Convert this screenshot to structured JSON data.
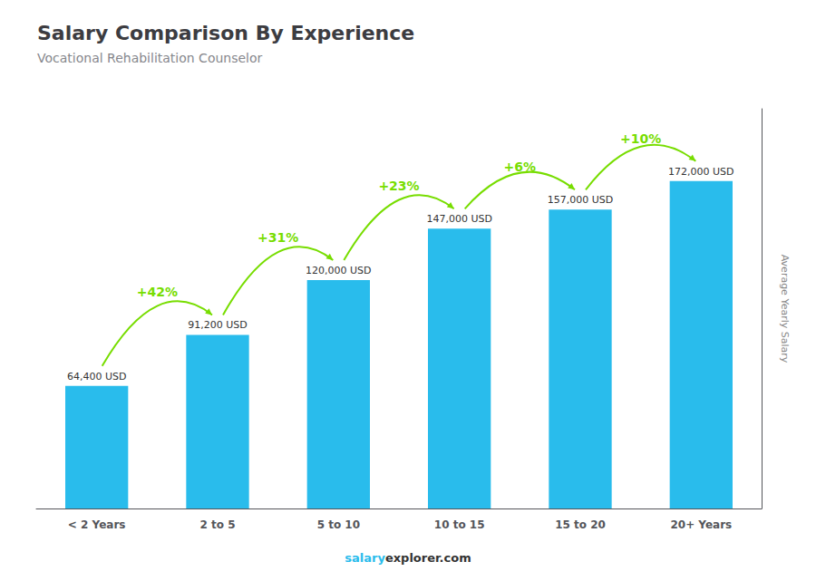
{
  "chart_data": {
    "type": "bar",
    "title": "Salary Comparison By Experience",
    "subtitle": "Vocational Rehabilitation Counselor",
    "ylabel": "Average Yearly Salary",
    "categories": [
      "< 2 Years",
      "2 to 5",
      "5 to 10",
      "10 to 15",
      "15 to 20",
      "20+ Years"
    ],
    "values": [
      64400,
      91200,
      120000,
      147000,
      157000,
      172000
    ],
    "value_labels": [
      "64,400 USD",
      "91,200 USD",
      "120,000 USD",
      "147,000 USD",
      "157,000 USD",
      "172,000 USD"
    ],
    "data_labels": true,
    "color": "#29BCEC",
    "ylim": [
      0,
      210000
    ],
    "yticks": [],
    "tick_labels": "x",
    "grid": false,
    "annotations": [
      {
        "text": "+42%",
        "color": "#77DD00"
      },
      {
        "text": "+31%",
        "color": "#77DD00"
      },
      {
        "text": "+23%",
        "color": "#77DD00"
      },
      {
        "text": "+6%",
        "color": "#77DD00"
      },
      {
        "text": "+10%",
        "color": "#77DD00"
      }
    ],
    "footer": [
      "salary",
      "explorer.com"
    ]
  }
}
